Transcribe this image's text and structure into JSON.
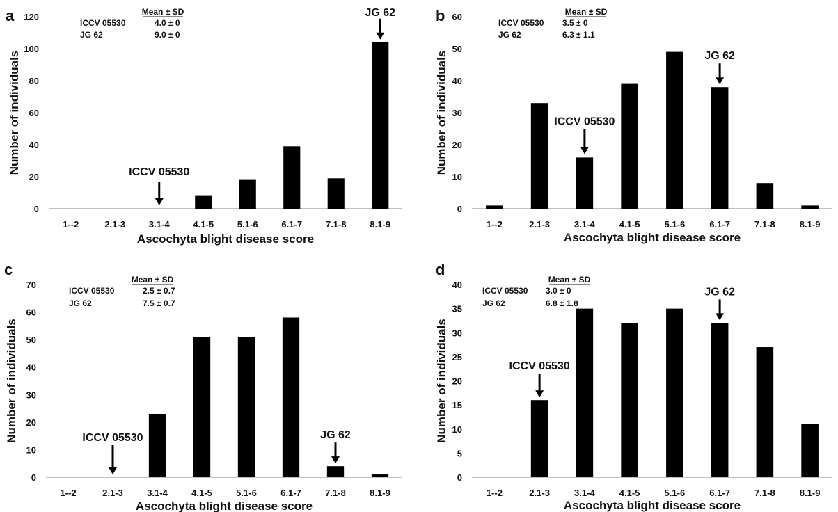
{
  "chart_data": [
    {
      "panel": "a",
      "type": "bar",
      "categories": [
        "1--2",
        "2.1-3",
        "3.1-4",
        "4.1-5",
        "5.1-6",
        "6.1-7",
        "7.1-8",
        "8.1-9"
      ],
      "values": [
        0,
        0,
        0,
        8,
        18,
        39,
        19,
        104
      ],
      "xlabel": "Ascochyta blight disease score",
      "ylabel": "Number of individuals",
      "ylim": [
        0,
        120
      ],
      "yticks": [
        0,
        20,
        40,
        60,
        80,
        100,
        120
      ],
      "grid": false,
      "stats_header": "Mean ± SD",
      "stats": [
        {
          "name": "ICCV 05530",
          "value": "4.0 ± 0"
        },
        {
          "name": "JG 62",
          "value": "9.0 ± 0"
        }
      ],
      "annotations": [
        {
          "text": "ICCV 05530",
          "category": "3.1-4",
          "y": 0
        },
        {
          "text": "JG 62",
          "category": "8.1-9",
          "y": 104
        }
      ]
    },
    {
      "panel": "b",
      "type": "bar",
      "categories": [
        "1--2",
        "2.1-3",
        "3.1-4",
        "4.1-5",
        "5.1-6",
        "6.1-7",
        "7.1-8",
        "8.1-9"
      ],
      "values": [
        1,
        33,
        16,
        39,
        49,
        38,
        8,
        1
      ],
      "xlabel": "Ascochyta blight disease score",
      "ylabel": "Number of individuals",
      "ylim": [
        0,
        60
      ],
      "yticks": [
        0,
        10,
        20,
        30,
        40,
        50,
        60
      ],
      "grid": false,
      "stats_header": "Mean ± SD",
      "stats": [
        {
          "name": "ICCV 05530",
          "value": "3.5 ± 0"
        },
        {
          "name": "JG 62",
          "value": "6.3 ± 1.1"
        }
      ],
      "annotations": [
        {
          "text": "ICCV 05530",
          "category": "3.1-4",
          "y": 16
        },
        {
          "text": "JG 62",
          "category": "6.1-7",
          "y": 38
        }
      ]
    },
    {
      "panel": "c",
      "type": "bar",
      "categories": [
        "1--2",
        "2.1-3",
        "3.1-4",
        "4.1-5",
        "5.1-6",
        "6.1-7",
        "7.1-8",
        "8.1-9"
      ],
      "values": [
        0,
        0,
        23,
        51,
        51,
        58,
        4,
        1
      ],
      "xlabel": "Ascochyta blight disease score",
      "ylabel": "Number of individuals",
      "ylim": [
        0,
        70
      ],
      "yticks": [
        0,
        10,
        20,
        30,
        40,
        50,
        60,
        70
      ],
      "grid": false,
      "stats_header": "Mean ± SD",
      "stats": [
        {
          "name": "ICCV 05530",
          "value": "2.5 ± 0.7"
        },
        {
          "name": "JG 62",
          "value": "7.5 ± 0.7"
        }
      ],
      "annotations": [
        {
          "text": "ICCV 05530",
          "category": "2.1-3",
          "y": 0
        },
        {
          "text": "JG 62",
          "category": "7.1-8",
          "y": 4
        }
      ]
    },
    {
      "panel": "d",
      "type": "bar",
      "categories": [
        "1--2",
        "2.1-3",
        "3.1-4",
        "4.1-5",
        "5.1-6",
        "6.1-7",
        "7.1-8",
        "8.1-9"
      ],
      "values": [
        0,
        16,
        35,
        32,
        35,
        32,
        27,
        11
      ],
      "xlabel": "Ascochyta blight disease score",
      "ylabel": "Number of individuals",
      "ylim": [
        0,
        40
      ],
      "yticks": [
        0,
        5,
        10,
        15,
        20,
        25,
        30,
        35,
        40
      ],
      "grid": false,
      "stats_header": "Mean ± SD",
      "stats": [
        {
          "name": "ICCV 05530",
          "value": "3.0 ± 0"
        },
        {
          "name": "JG 62",
          "value": "6.8 ± 1.8"
        }
      ],
      "annotations": [
        {
          "text": "ICCV 05530",
          "category": "2.1-3",
          "y": 16
        },
        {
          "text": "JG 62",
          "category": "6.1-7",
          "y": 32
        }
      ]
    }
  ],
  "colors": {
    "bar": "#000000",
    "axis": "#808080",
    "text": "#111111"
  }
}
